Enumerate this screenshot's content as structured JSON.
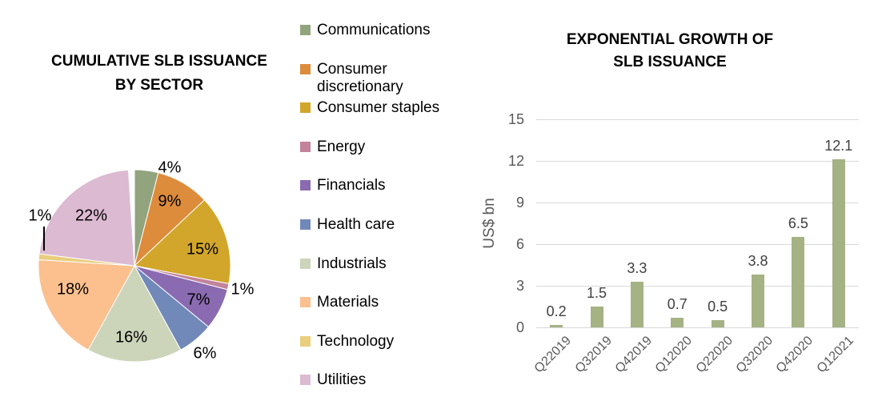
{
  "page": {
    "background": "#ffffff"
  },
  "left_chart": {
    "title_line1": "CUMULATIVE SLB ISSUANCE",
    "title_line2": "BY SECTOR",
    "chart_data": {
      "type": "pie",
      "title": "CUMULATIVE SLB ISSUANCE BY SECTOR",
      "start_angle_deg": 0,
      "direction": "clockwise",
      "legend_position": "right",
      "slices": [
        {
          "label": "Communications",
          "value_pct": 4,
          "display": "4%",
          "color": "#92a47d"
        },
        {
          "label": "Consumer discretionary",
          "value_pct": 9,
          "display": "9%",
          "color": "#dd8c3c"
        },
        {
          "label": "Consumer staples",
          "value_pct": 15,
          "display": "15%",
          "color": "#d2a62a"
        },
        {
          "label": "Energy",
          "value_pct": 1,
          "display": "1%",
          "color": "#c2839b"
        },
        {
          "label": "Financials",
          "value_pct": 7,
          "display": "7%",
          "color": "#8a6bb1"
        },
        {
          "label": "Health care",
          "value_pct": 6,
          "display": "6%",
          "color": "#7189b8"
        },
        {
          "label": "Industrials",
          "value_pct": 16,
          "display": "16%",
          "color": "#ccd5ba"
        },
        {
          "label": "Materials",
          "value_pct": 18,
          "display": "18%",
          "color": "#fbc08d"
        },
        {
          "label": "Technology",
          "value_pct": 1,
          "display": "1%",
          "color": "#e9ce7d"
        },
        {
          "label": "Utilities",
          "value_pct": 22,
          "display": "22%",
          "color": "#dcbad2"
        }
      ]
    }
  },
  "right_chart": {
    "title_line1": "EXPONENTIAL GROWTH OF",
    "title_line2": "SLB ISSUANCE",
    "chart_data": {
      "type": "bar",
      "title": "EXPONENTIAL GROWTH OF SLB ISSUANCE",
      "categories": [
        "Q22019",
        "Q32019",
        "Q42019",
        "Q12020",
        "Q22020",
        "Q32020",
        "Q42020",
        "Q12021"
      ],
      "values": [
        0.2,
        1.5,
        3.3,
        0.7,
        0.5,
        3.8,
        6.5,
        12.1
      ],
      "data_labels": [
        "0.2",
        "1.5",
        "3.3",
        "0.7",
        "0.5",
        "3.8",
        "6.5",
        "12.1"
      ],
      "ylabel": "US$ bn",
      "ylim": [
        0,
        15
      ],
      "yticks": [
        0,
        3,
        6,
        9,
        12,
        15
      ],
      "grid": true,
      "bar_color": "#a4b284",
      "gridline_color": "#d9d9d9",
      "axis_text_color": "#595959",
      "data_label_color": "#404040"
    }
  }
}
